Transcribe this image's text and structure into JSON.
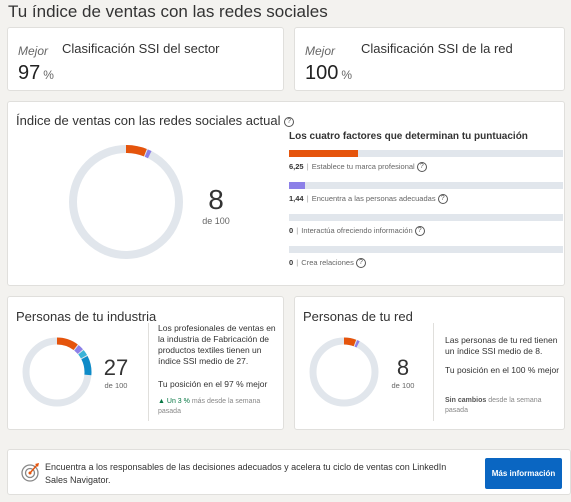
{
  "page": {
    "title": "Tu índice de ventas con las redes sociales"
  },
  "industry_rank": {
    "better_label": "Mejor",
    "title": "Clasificación SSI del sector",
    "value": "97",
    "unit": "%"
  },
  "network_rank": {
    "better_label": "Mejor",
    "title": "Clasificación SSI de la red",
    "value": "100",
    "unit": "%"
  },
  "ssi": {
    "title": "Índice de ventas con las redes sociales actual",
    "score": "8",
    "of_label": "de 100",
    "score_fraction": 0.08,
    "factors_title": "Los cuatro factores que determinan tu puntuación",
    "factors": [
      {
        "value": "6,25",
        "label": "Establece tu marca profesional",
        "fraction": 0.25,
        "color": "#e5540c"
      },
      {
        "value": "1,44",
        "label": "Encuentra a las personas adecuadas",
        "fraction": 0.0576,
        "color": "#8c80e8"
      },
      {
        "value": "0",
        "label": "Interactúa ofreciendo información",
        "fraction": 0,
        "color": "#3ab3d8"
      },
      {
        "value": "0",
        "label": "Crea relaciones",
        "fraction": 0,
        "color": "#0e8bc8"
      }
    ]
  },
  "industry": {
    "title": "Personas de tu industria",
    "score": "27",
    "of_label": "de 100",
    "score_fraction": 0.27,
    "description": "Los profesionales de ventas en la industria de Fabricación de productos textiles tienen un índice SSI medio de 27.",
    "position": "Tu posición en el 97 % mejor",
    "change_arrow": "▲",
    "change_value": "Un 3 %",
    "change_text": "más desde la semana pasada"
  },
  "network": {
    "title": "Personas de tu red",
    "score": "8",
    "of_label": "de 100",
    "score_fraction": 0.08,
    "description": "Las personas de tu red tienen un índice SSI medio de 8.",
    "position": "Tu posición en el 100 % mejor",
    "change_value": "Sin cambios",
    "change_text": "desde la semana pasada"
  },
  "promo": {
    "text": "Encuentra a los responsables de las decisiones adecuados y acelera tu ciclo de ventas con LinkedIn Sales Navigator.",
    "button": "Más información"
  },
  "colors": {
    "track": "#e1e6ec",
    "brand": "#e5540c",
    "people": "#8c80e8",
    "insights": "#3ab3d8",
    "relationships": "#0e8bc8",
    "button": "#0a66c2"
  }
}
